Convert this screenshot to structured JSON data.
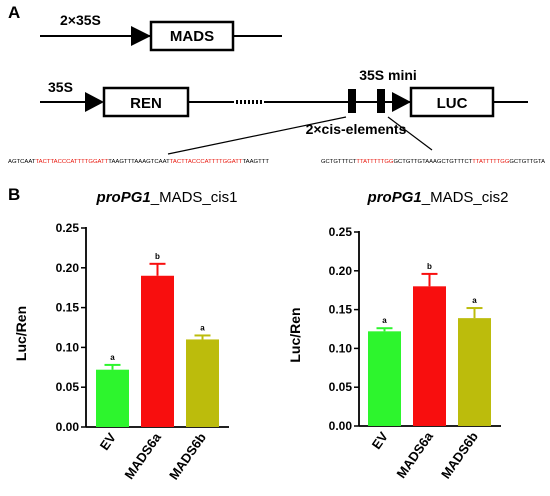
{
  "panel_a": {
    "letter": "A",
    "construct1": {
      "promoter": "2×35S",
      "gene": "MADS"
    },
    "construct2": {
      "promoter": "35S",
      "reporter1": "REN",
      "minimal_promoter": "35S mini",
      "reporter2": "LUC",
      "elements_label": "2×cis-elements"
    },
    "seq_left": [
      {
        "text": "AGTCAAT",
        "color": "#000000"
      },
      {
        "text": "TACTTACCCATTTTGGATT",
        "color": "#e8160c"
      },
      {
        "text": "TAAGTTTAAAGTCAAT",
        "color": "#000000"
      },
      {
        "text": "TACTTACCCATTTTGGATT",
        "color": "#e8160c"
      },
      {
        "text": "TAAGTTT",
        "color": "#000000"
      }
    ],
    "seq_right": [
      {
        "text": "GCTGTTTCT",
        "color": "#000000"
      },
      {
        "text": "TTATTTTTGG",
        "color": "#e8160c"
      },
      {
        "text": "GCTGTTGTAAAGCTGTTTCT",
        "color": "#000000"
      },
      {
        "text": "TTATTTTTGG",
        "color": "#e8160c"
      },
      {
        "text": "GCTGTTGTA",
        "color": "#000000"
      }
    ]
  },
  "panel_b": {
    "letter": "B"
  },
  "colors": {
    "EV": "#2df52d",
    "MADS6a": "#f80e0e",
    "MADS6b": "#bcbc0c"
  },
  "chart_data": [
    {
      "type": "bar",
      "title_italic": "proPG1",
      "title_rest": "_MADS_cis1",
      "ylabel": "Luc/Ren",
      "xlabel": "",
      "ylim": [
        0,
        0.25
      ],
      "yticks": [
        "0.00",
        "0.05",
        "0.10",
        "0.15",
        "0.20",
        "0.25"
      ],
      "categories": [
        "EV",
        "MADS6a",
        "MADS6b"
      ],
      "values": [
        0.072,
        0.19,
        0.11
      ],
      "errors": [
        0.006,
        0.015,
        0.005
      ],
      "significance": [
        "a",
        "b",
        "a"
      ]
    },
    {
      "type": "bar",
      "title_italic": "proPG1",
      "title_rest": "_MADS_cis2",
      "ylabel": "Luc/Ren",
      "xlabel": "",
      "ylim": [
        0,
        0.25
      ],
      "yticks": [
        "0.00",
        "0.05",
        "0.10",
        "0.15",
        "0.20",
        "0.25"
      ],
      "categories": [
        "EV",
        "MADS6a",
        "MADS6b"
      ],
      "values": [
        0.122,
        0.18,
        0.139
      ],
      "errors": [
        0.004,
        0.016,
        0.013
      ],
      "significance": [
        "a",
        "b",
        "a"
      ]
    }
  ]
}
